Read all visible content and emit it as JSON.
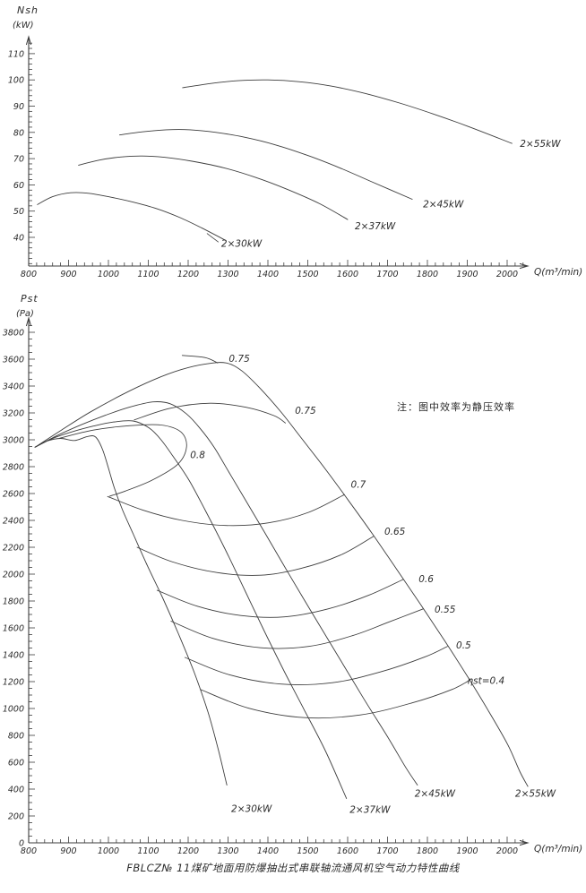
{
  "caption": "FBLCZ№ 11煤矿地面用防爆抽出式串联轴流通风机空气动力特性曲线",
  "colors": {
    "stroke": "#3d3d3d",
    "text": "#2b2b2b",
    "background": "#ffffff"
  },
  "chart_data": [
    {
      "id": "shaft-power",
      "type": "line",
      "title": "",
      "ylabel": "Nsh",
      "ylabel_unit": "(kW)",
      "xlabel": "Q(m³/min)",
      "xlim": [
        800,
        2060
      ],
      "ylim": [
        29,
        115
      ],
      "xticks": [
        800,
        900,
        1000,
        1100,
        1200,
        1300,
        1400,
        1500,
        1600,
        1700,
        1800,
        1900,
        2000
      ],
      "yticks": [
        40,
        50,
        60,
        70,
        80,
        90,
        100,
        110
      ],
      "x_minor_step": 20,
      "y_minor_step": 2,
      "grid": false,
      "legend_position": "inline-labels",
      "series": [
        {
          "name": "2×30kW",
          "label_pos": [
            1283,
            36.5
          ],
          "leader": [
            [
              1247,
              41.5
            ],
            [
              1276,
              38.2
            ]
          ],
          "points": [
            [
              822,
              52.5
            ],
            [
              860,
              55.5
            ],
            [
              905,
              57
            ],
            [
              950,
              56.8
            ],
            [
              1000,
              55.5
            ],
            [
              1060,
              53.5
            ],
            [
              1120,
              51
            ],
            [
              1180,
              47.5
            ],
            [
              1235,
              43.5
            ],
            [
              1292,
              39
            ]
          ]
        },
        {
          "name": "2×37kW",
          "label_pos": [
            1618,
            43
          ],
          "points": [
            [
              925,
              67.5
            ],
            [
              975,
              69.4
            ],
            [
              1030,
              70.6
            ],
            [
              1085,
              71
            ],
            [
              1140,
              70.5
            ],
            [
              1210,
              69
            ],
            [
              1290,
              66.5
            ],
            [
              1370,
              62.8
            ],
            [
              1450,
              58.2
            ],
            [
              1530,
              52.8
            ],
            [
              1600,
              46.8
            ]
          ]
        },
        {
          "name": "2×45kW",
          "label_pos": [
            1789,
            51.5
          ],
          "points": [
            [
              1028,
              79
            ],
            [
              1085,
              80.2
            ],
            [
              1145,
              81
            ],
            [
              1205,
              81
            ],
            [
              1270,
              80
            ],
            [
              1340,
              78.2
            ],
            [
              1420,
              75.2
            ],
            [
              1500,
              71.2
            ],
            [
              1580,
              66.5
            ],
            [
              1660,
              61.2
            ],
            [
              1762,
              54.5
            ]
          ]
        },
        {
          "name": "2×55kW",
          "label_pos": [
            2032,
            74.5
          ],
          "points": [
            [
              1186,
              97
            ],
            [
              1255,
              98.6
            ],
            [
              1325,
              99.7
            ],
            [
              1400,
              100
            ],
            [
              1480,
              99.3
            ],
            [
              1560,
              97.6
            ],
            [
              1645,
              94.8
            ],
            [
              1730,
              91.2
            ],
            [
              1815,
              87
            ],
            [
              1900,
              82.4
            ],
            [
              2012,
              75.8
            ]
          ]
        }
      ]
    },
    {
      "id": "static-pressure",
      "type": "line",
      "title": "",
      "ylabel": "Pst",
      "ylabel_unit": "(Pa)",
      "xlabel": "Q(m³/min)",
      "note": "注：图中效率为静压效率",
      "xlim": [
        800,
        2060
      ],
      "ylim": [
        0,
        3900
      ],
      "xticks": [
        800,
        900,
        1000,
        1100,
        1200,
        1300,
        1400,
        1500,
        1600,
        1700,
        1800,
        1900,
        2000
      ],
      "yticks": [
        0,
        200,
        400,
        600,
        800,
        1000,
        1200,
        1400,
        1600,
        1800,
        2000,
        2200,
        2400,
        2600,
        2800,
        3000,
        3200,
        3400,
        3600,
        3800
      ],
      "x_minor_step": 20,
      "y_minor_step": 50,
      "grid": false,
      "legend_position": "inline-labels",
      "series": [
        {
          "name": "2×30kW",
          "label_pos": [
            1308,
            230
          ],
          "points": [
            [
              816,
              2945
            ],
            [
              845,
              2990
            ],
            [
              880,
              3010
            ],
            [
              915,
              2995
            ],
            [
              948,
              3025
            ],
            [
              968,
              3020
            ],
            [
              985,
              2930
            ],
            [
              1000,
              2790
            ],
            [
              1015,
              2640
            ],
            [
              1035,
              2480
            ],
            [
              1062,
              2300
            ],
            [
              1095,
              2080
            ],
            [
              1135,
              1830
            ],
            [
              1175,
              1560
            ],
            [
              1215,
              1270
            ],
            [
              1250,
              970
            ],
            [
              1275,
              700
            ],
            [
              1297,
              430
            ]
          ]
        },
        {
          "name": "2×37kW",
          "label_pos": [
            1605,
            225
          ],
          "points": [
            [
              816,
              2945
            ],
            [
              862,
              3012
            ],
            [
              912,
              3062
            ],
            [
              962,
              3102
            ],
            [
              1012,
              3132
            ],
            [
              1062,
              3140
            ],
            [
              1102,
              3088
            ],
            [
              1132,
              3000
            ],
            [
              1165,
              2865
            ],
            [
              1202,
              2700
            ],
            [
              1242,
              2480
            ],
            [
              1292,
              2190
            ],
            [
              1342,
              1880
            ],
            [
              1392,
              1570
            ],
            [
              1442,
              1270
            ],
            [
              1492,
              985
            ],
            [
              1545,
              680
            ],
            [
              1597,
              330
            ]
          ]
        },
        {
          "name": "2×45kW",
          "label_pos": [
            1768,
            345
          ],
          "points": [
            [
              816,
              2945
            ],
            [
              872,
              3032
            ],
            [
              932,
              3112
            ],
            [
              992,
              3182
            ],
            [
              1052,
              3242
            ],
            [
              1112,
              3282
            ],
            [
              1155,
              3268
            ],
            [
              1195,
              3195
            ],
            [
              1230,
              3085
            ],
            [
              1265,
              2945
            ],
            [
              1302,
              2760
            ],
            [
              1342,
              2560
            ],
            [
              1392,
              2310
            ],
            [
              1452,
              2005
            ],
            [
              1515,
              1690
            ],
            [
              1578,
              1380
            ],
            [
              1640,
              1075
            ],
            [
              1700,
              790
            ],
            [
              1745,
              565
            ],
            [
              1775,
              430
            ]
          ]
        },
        {
          "name": "2×55kW",
          "label_pos": [
            2020,
            345
          ],
          "points": [
            [
              816,
              2945
            ],
            [
              882,
              3072
            ],
            [
              952,
              3202
            ],
            [
              1032,
              3332
            ],
            [
              1112,
              3445
            ],
            [
              1182,
              3522
            ],
            [
              1245,
              3565
            ],
            [
              1295,
              3572
            ],
            [
              1335,
              3512
            ],
            [
              1382,
              3378
            ],
            [
              1432,
              3210
            ],
            [
              1482,
              3020
            ],
            [
              1542,
              2790
            ],
            [
              1602,
              2548
            ],
            [
              1662,
              2300
            ],
            [
              1722,
              2040
            ],
            [
              1782,
              1778
            ],
            [
              1842,
              1510
            ],
            [
              1902,
              1232
            ],
            [
              1952,
              988
            ],
            [
              2002,
              728
            ],
            [
              2032,
              530
            ],
            [
              2052,
              420
            ]
          ]
        }
      ],
      "contours": [
        {
          "label": "0.8",
          "label_pos": [
            1205,
            2865
          ],
          "points": [
            [
              878,
              3012
            ],
            [
              962,
              3072
            ],
            [
              1052,
              3105
            ],
            [
              1132,
              3110
            ],
            [
              1182,
              3058
            ],
            [
              1196,
              2948
            ],
            [
              1174,
              2818
            ],
            [
              1110,
              2700
            ],
            [
              1042,
              2618
            ],
            [
              1003,
              2580
            ]
          ]
        },
        {
          "label": "0.75",
          "label_pos": [
            1302,
            3580
          ],
          "points": [
            [
              1185,
              3628
            ],
            [
              1242,
              3612
            ],
            [
              1274,
              3572
            ]
          ]
        },
        {
          "label": "0.75",
          "label_pos": [
            1468,
            3195
          ],
          "points": [
            [
              1065,
              3148
            ],
            [
              1155,
              3235
            ],
            [
              1255,
              3272
            ],
            [
              1345,
              3242
            ],
            [
              1415,
              3180
            ],
            [
              1444,
              3125
            ]
          ]
        },
        {
          "label": "0.7",
          "label_pos": [
            1608,
            2645
          ],
          "points": [
            [
              998,
              2578
            ],
            [
              1085,
              2478
            ],
            [
              1185,
              2400
            ],
            [
              1295,
              2362
            ],
            [
              1402,
              2382
            ],
            [
              1502,
              2460
            ],
            [
              1592,
              2592
            ]
          ]
        },
        {
          "label": "0.65",
          "label_pos": [
            1692,
            2295
          ],
          "points": [
            [
              1072,
              2200
            ],
            [
              1162,
              2090
            ],
            [
              1272,
              2012
            ],
            [
              1382,
              1992
            ],
            [
              1482,
              2042
            ],
            [
              1582,
              2142
            ],
            [
              1665,
              2282
            ]
          ]
        },
        {
          "label": "0.6",
          "label_pos": [
            1778,
            1940
          ],
          "points": [
            [
              1122,
              1880
            ],
            [
              1222,
              1762
            ],
            [
              1332,
              1692
            ],
            [
              1442,
              1682
            ],
            [
              1552,
              1742
            ],
            [
              1652,
              1842
            ],
            [
              1740,
              1962
            ]
          ]
        },
        {
          "label": "0.55",
          "label_pos": [
            1818,
            1715
          ],
          "points": [
            [
              1157,
              1650
            ],
            [
              1262,
              1522
            ],
            [
              1382,
              1452
            ],
            [
              1502,
              1462
            ],
            [
              1612,
              1542
            ],
            [
              1702,
              1642
            ],
            [
              1790,
              1742
            ]
          ]
        },
        {
          "label": "0.5",
          "label_pos": [
            1872,
            1448
          ],
          "points": [
            [
              1192,
              1380
            ],
            [
              1302,
              1252
            ],
            [
              1432,
              1182
            ],
            [
              1562,
              1192
            ],
            [
              1682,
              1272
            ],
            [
              1792,
              1382
            ],
            [
              1850,
              1462
            ]
          ]
        },
        {
          "label": "ηst=0.4",
          "label_pos": [
            1900,
            1185
          ],
          "points": [
            [
              1232,
              1140
            ],
            [
              1352,
              1002
            ],
            [
              1492,
              932
            ],
            [
              1632,
              952
            ],
            [
              1762,
              1042
            ],
            [
              1862,
              1142
            ],
            [
              1908,
              1215
            ]
          ]
        }
      ]
    }
  ]
}
